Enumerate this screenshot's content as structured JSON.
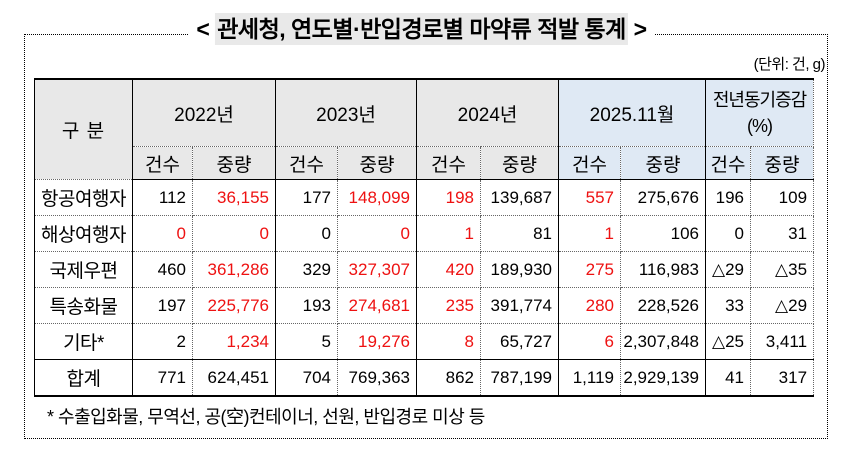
{
  "title": {
    "prefix": "<",
    "text": "관세청, 연도별·반입경로별 마약류 적발 통계",
    "suffix": ">"
  },
  "unit_label": "(단위: 건, g)",
  "colors": {
    "red_text": "#ee1111",
    "header_gray": "#e8e8e8",
    "header_blue": "#dfe9f4"
  },
  "table": {
    "category_header": "구 분",
    "groups": [
      {
        "label": "2022년",
        "theme": "gray"
      },
      {
        "label": "2023년",
        "theme": "gray"
      },
      {
        "label": "2024년",
        "theme": "gray"
      },
      {
        "label": "2025.11월",
        "theme": "blue"
      },
      {
        "label": "전년동기증감",
        "sublabel": "(%)",
        "theme": "blue"
      }
    ],
    "sub_headers": [
      "건수",
      "중량"
    ],
    "rows": [
      {
        "label": "항공여행자",
        "total": false,
        "cells": [
          {
            "v": "112",
            "red": false
          },
          {
            "v": "36,155",
            "red": true
          },
          {
            "v": "177",
            "red": false
          },
          {
            "v": "148,099",
            "red": true
          },
          {
            "v": "198",
            "red": true
          },
          {
            "v": "139,687",
            "red": false
          },
          {
            "v": "557",
            "red": true
          },
          {
            "v": "275,676",
            "red": false
          },
          {
            "v": "196",
            "red": false
          },
          {
            "v": "109",
            "red": false
          }
        ]
      },
      {
        "label": "해상여행자",
        "total": false,
        "cells": [
          {
            "v": "0",
            "red": true
          },
          {
            "v": "0",
            "red": true
          },
          {
            "v": "0",
            "red": false
          },
          {
            "v": "0",
            "red": true
          },
          {
            "v": "1",
            "red": true
          },
          {
            "v": "81",
            "red": false
          },
          {
            "v": "1",
            "red": true
          },
          {
            "v": "106",
            "red": false
          },
          {
            "v": "0",
            "red": false
          },
          {
            "v": "31",
            "red": false
          }
        ]
      },
      {
        "label": "국제우편",
        "total": false,
        "cells": [
          {
            "v": "460",
            "red": false
          },
          {
            "v": "361,286",
            "red": true
          },
          {
            "v": "329",
            "red": false
          },
          {
            "v": "327,307",
            "red": true
          },
          {
            "v": "420",
            "red": true
          },
          {
            "v": "189,930",
            "red": false
          },
          {
            "v": "275",
            "red": true
          },
          {
            "v": "116,983",
            "red": false
          },
          {
            "v": "△29",
            "red": false
          },
          {
            "v": "△35",
            "red": false
          }
        ]
      },
      {
        "label": "특송화물",
        "total": false,
        "cells": [
          {
            "v": "197",
            "red": false
          },
          {
            "v": "225,776",
            "red": true
          },
          {
            "v": "193",
            "red": false
          },
          {
            "v": "274,681",
            "red": true
          },
          {
            "v": "235",
            "red": true
          },
          {
            "v": "391,774",
            "red": false
          },
          {
            "v": "280",
            "red": true
          },
          {
            "v": "228,526",
            "red": false
          },
          {
            "v": "33",
            "red": false
          },
          {
            "v": "△29",
            "red": false
          }
        ]
      },
      {
        "label": "기타*",
        "total": false,
        "cells": [
          {
            "v": "2",
            "red": false
          },
          {
            "v": "1,234",
            "red": true
          },
          {
            "v": "5",
            "red": false
          },
          {
            "v": "19,276",
            "red": true
          },
          {
            "v": "8",
            "red": true
          },
          {
            "v": "65,727",
            "red": false
          },
          {
            "v": "6",
            "red": true
          },
          {
            "v": "2,307,848",
            "red": false
          },
          {
            "v": "△25",
            "red": false
          },
          {
            "v": "3,411",
            "red": false
          }
        ]
      },
      {
        "label": "합계",
        "total": true,
        "cells": [
          {
            "v": "771",
            "red": false
          },
          {
            "v": "624,451",
            "red": false
          },
          {
            "v": "704",
            "red": false
          },
          {
            "v": "769,363",
            "red": false
          },
          {
            "v": "862",
            "red": false
          },
          {
            "v": "787,199",
            "red": false
          },
          {
            "v": "1,119",
            "red": false
          },
          {
            "v": "2,929,139",
            "red": false
          },
          {
            "v": "41",
            "red": false
          },
          {
            "v": "317",
            "red": false
          }
        ]
      }
    ],
    "footnote": "* 수출입화물, 무역선, 공(空)컨테이너, 선원, 반입경로 미상 등"
  }
}
